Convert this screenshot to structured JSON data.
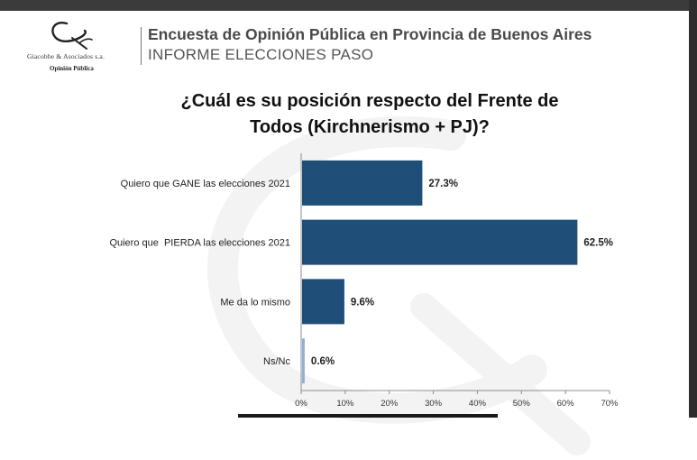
{
  "header": {
    "logo_company": "Giacobbe & Asociados s.a.",
    "logo_subtitle": "Opinión Pública",
    "title": "Encuesta de Opinión Pública en Provincia de Buenos Aires",
    "subtitle": "INFORME ELECCIONES PASO"
  },
  "chart_data": {
    "type": "bar",
    "orientation": "horizontal",
    "title_lines": [
      "¿Cuál es su posición respecto del Frente de",
      "Todos (Kirchnerismo + PJ)?"
    ],
    "categories": [
      "Quiero que GANE las elecciones 2021",
      "Quiero que  PIERDA las elecciones 2021",
      "Me da lo mismo",
      "Ns/Nc"
    ],
    "values": [
      27.3,
      62.5,
      9.6,
      0.6
    ],
    "value_labels": [
      "27.3%",
      "62.5%",
      "9.6%",
      "0.6%"
    ],
    "bar_colors": [
      "#1f4e79",
      "#1f4e79",
      "#1f4e79",
      "#8fb0d6"
    ],
    "xlim": [
      0,
      70
    ],
    "xticks": [
      0,
      10,
      20,
      30,
      40,
      50,
      60,
      70
    ],
    "xtick_labels": [
      "0%",
      "10%",
      "20%",
      "30%",
      "40%",
      "50%",
      "60%",
      "70%"
    ],
    "grid": false,
    "legend": "none"
  }
}
